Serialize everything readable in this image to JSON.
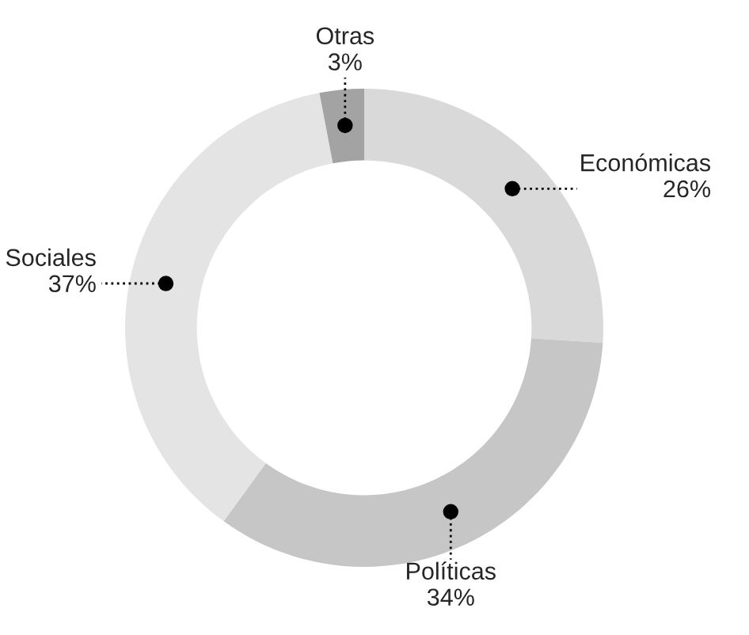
{
  "chart_data": {
    "type": "donut",
    "categories": [
      "Económicas",
      "Políticas",
      "Sociales",
      "Otras"
    ],
    "values": [
      26,
      34,
      37,
      3
    ],
    "value_labels": [
      "26%",
      "34%",
      "37%",
      "3%"
    ],
    "colors": [
      "#d9d9d9",
      "#c6c6c6",
      "#e4e4e4",
      "#a3a3a3"
    ]
  }
}
